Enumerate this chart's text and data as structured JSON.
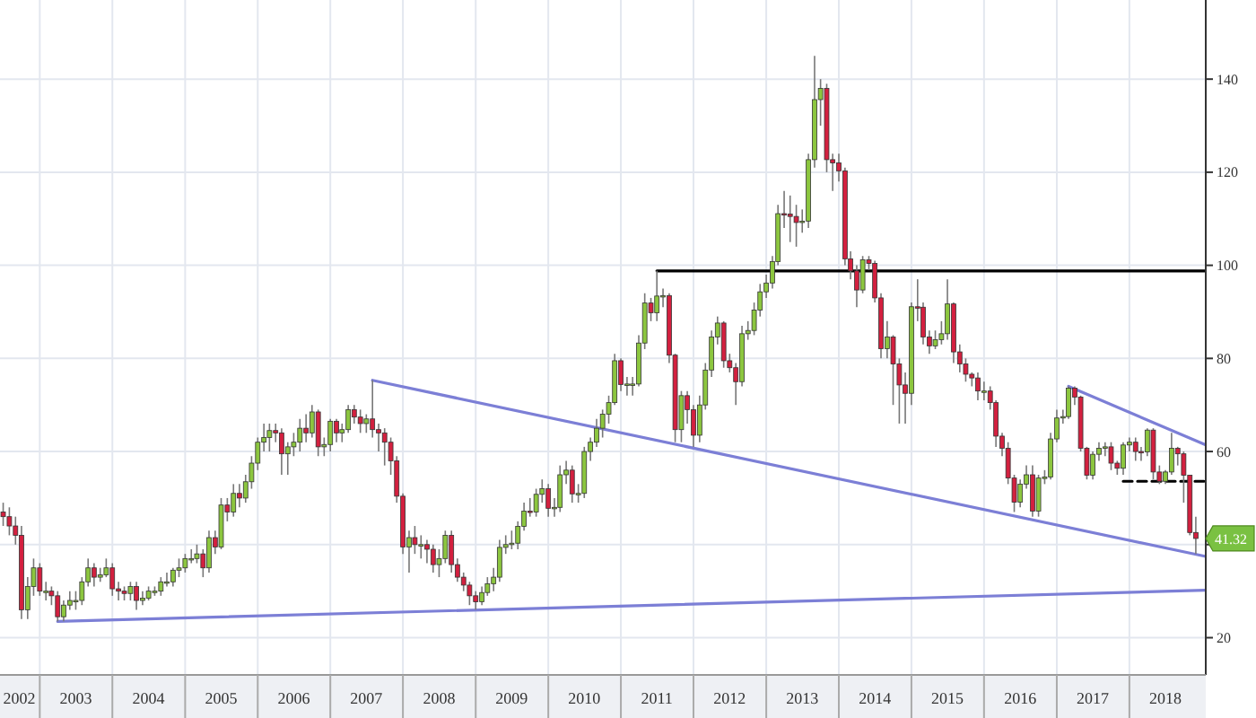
{
  "chart_data": {
    "type": "candlestick",
    "colors": [
      "#d3203f",
      "#d3203f",
      "#d3203f",
      "#d3203f",
      "#8cc63f",
      "#8cc63f",
      "#d3203f",
      "#8cc63f",
      "#d3203f",
      "#d3203f",
      "#8cc63f",
      "#8cc63f",
      "#8cc63f",
      "#8cc63f",
      "#8cc63f",
      "#d3203f",
      "#8cc63f",
      "#8cc63f",
      "#d3203f",
      "#d3203f",
      "#d3203f",
      "#8cc63f",
      "#d3203f",
      "#8cc63f",
      "#8cc63f",
      "#8cc63f",
      "#8cc63f",
      "#8cc63f",
      "#8cc63f",
      "#8cc63f",
      "#8cc63f",
      "#8cc63f",
      "#8cc63f",
      "#d3203f",
      "#8cc63f",
      "#d3203f",
      "#8cc63f",
      "#d3203f",
      "#8cc63f",
      "#d3203f",
      "#8cc63f",
      "#8cc63f",
      "#8cc63f",
      "#8cc63f",
      "#8cc63f",
      "#d3203f",
      "#d3203f",
      "#8cc63f",
      "#8cc63f",
      "#8cc63f",
      "#d3203f",
      "#8cc63f",
      "#d3203f",
      "#8cc63f",
      "#8cc63f",
      "#d3203f",
      "#8cc63f",
      "#8cc63f",
      "#d3203f",
      "#d3203f",
      "#8cc63f",
      "#d3203f",
      "#d3203f",
      "#d3203f",
      "#d3203f",
      "#d3203f",
      "#d3203f",
      "#8cc63f",
      "#d3203f",
      "#8cc63f",
      "#d3203f",
      "#d3203f",
      "#8cc63f",
      "#8cc63f",
      "#d3203f",
      "#d3203f",
      "#d3203f",
      "#d3203f",
      "#d3203f",
      "#8cc63f",
      "#8cc63f",
      "#8cc63f",
      "#8cc63f",
      "#8cc63f",
      "#8cc63f",
      "#8cc63f",
      "#8cc63f",
      "#d3203f",
      "#8cc63f",
      "#8cc63f",
      "#d3203f",
      "#8cc63f",
      "#8cc63f",
      "#8cc63f",
      "#d3203f",
      "#8cc63f",
      "#8cc63f",
      "#8cc63f",
      "#8cc63f",
      "#8cc63f",
      "#8cc63f",
      "#8cc63f",
      "#d3203f",
      "#8cc63f",
      "#8cc63f",
      "#8cc63f",
      "#8cc63f",
      "#d3203f",
      "#8cc63f",
      "#8cc63f",
      "#d3203f",
      "#d3203f",
      "#8cc63f",
      "#d3203f",
      "#d3203f",
      "#8cc63f",
      "#8cc63f",
      "#8cc63f",
      "#8cc63f",
      "#d3203f",
      "#d3203f",
      "#d3203f",
      "#8cc63f",
      "#8cc63f",
      "#8cc63f",
      "#8cc63f",
      "#8cc63f",
      "#8cc63f",
      "#8cc63f",
      "#d3203f",
      "#d3203f",
      "#d3203f",
      "#8cc63f",
      "#8cc63f",
      "#8cc63f",
      "#8cc63f",
      "#d3203f",
      "#d3203f",
      "#d3203f",
      "#d3203f",
      "#d3203f",
      "#d3203f",
      "#8cc63f",
      "#d3203f",
      "#d3203f",
      "#d3203f",
      "#8cc63f",
      "#d3203f",
      "#d3203f",
      "#d3203f",
      "#8cc63f",
      "#d3203f",
      "#d3203f",
      "#d3203f",
      "#8cc63f",
      "#8cc63f",
      "#8cc63f",
      "#d3203f",
      "#d3203f",
      "#d3203f",
      "#d3203f",
      "#d3203f",
      "#8cc63f",
      "#d3203f",
      "#d3203f",
      "#d3203f",
      "#d3203f",
      "#d3203f",
      "#8cc63f",
      "#8cc63f",
      "#d3203f",
      "#8cc63f",
      "#8cc63f",
      "#8cc63f",
      "#8cc63f",
      "#8cc63f",
      "#8cc63f",
      "#d3203f",
      "#d3203f",
      "#d3203f",
      "#8cc63f",
      "#8cc63f",
      "#8cc63f",
      "#d3203f",
      "#d3203f",
      "#8cc63f",
      "#8cc63f",
      "#d3203f",
      "#d3203f",
      "#8cc63f",
      "#d3203f",
      "#d3203f",
      "#8cc63f",
      "#8cc63f",
      "#d3203f",
      "#d3203f",
      "#d3203f",
      "#d3203f"
    ],
    "x": [
      "2002-07",
      "2002-08",
      "2002-09",
      "2002-10",
      "2002-11",
      "2002-12",
      "2003-01",
      "2003-02",
      "2003-03",
      "2003-04",
      "2003-05",
      "2003-06",
      "2003-07",
      "2003-08",
      "2003-09",
      "2003-10",
      "2003-11",
      "2003-12",
      "2004-01",
      "2004-02",
      "2004-03",
      "2004-04",
      "2004-05",
      "2004-06",
      "2004-07",
      "2004-08",
      "2004-09",
      "2004-10",
      "2004-11",
      "2004-12",
      "2005-01",
      "2005-02",
      "2005-03",
      "2005-04",
      "2005-05",
      "2005-06",
      "2005-07",
      "2005-08",
      "2005-09",
      "2005-10",
      "2005-11",
      "2005-12",
      "2006-01",
      "2006-02",
      "2006-03",
      "2006-04",
      "2006-05",
      "2006-06",
      "2006-07",
      "2006-08",
      "2006-09",
      "2006-10",
      "2006-11",
      "2006-12",
      "2007-01",
      "2007-02",
      "2007-03",
      "2007-04",
      "2007-05",
      "2007-06",
      "2007-07",
      "2007-08",
      "2007-09",
      "2007-10",
      "2007-11",
      "2007-12",
      "2008-01",
      "2008-02",
      "2008-03",
      "2008-04",
      "2008-05",
      "2008-06",
      "2008-07",
      "2008-08",
      "2008-09",
      "2008-10",
      "2008-11",
      "2008-12",
      "2009-01",
      "2009-02",
      "2009-03",
      "2009-04",
      "2009-05",
      "2009-06",
      "2009-07",
      "2009-08",
      "2009-09",
      "2009-10",
      "2009-11",
      "2009-12",
      "2010-01",
      "2010-02",
      "2010-03",
      "2010-04",
      "2010-05",
      "2010-06",
      "2010-07",
      "2010-08",
      "2010-09",
      "2010-10",
      "2010-11",
      "2010-12",
      "2011-01",
      "2011-02",
      "2011-03",
      "2011-04",
      "2011-05",
      "2011-06",
      "2011-07",
      "2011-08",
      "2011-09",
      "2011-10",
      "2011-11",
      "2011-12",
      "2012-01",
      "2012-02",
      "2012-03",
      "2012-04",
      "2012-05",
      "2012-06",
      "2012-07",
      "2012-08",
      "2012-09",
      "2012-10",
      "2012-11",
      "2012-12",
      "2013-01",
      "2013-02",
      "2013-03",
      "2013-04",
      "2013-05",
      "2013-06",
      "2013-07",
      "2013-08",
      "2013-09",
      "2013-10",
      "2013-11",
      "2013-12",
      "2014-01",
      "2014-02",
      "2014-03",
      "2014-04",
      "2014-05",
      "2014-06",
      "2014-07",
      "2014-08",
      "2014-09",
      "2014-10",
      "2014-11",
      "2014-12",
      "2015-01",
      "2015-02",
      "2015-03",
      "2015-04",
      "2015-05",
      "2015-06",
      "2015-07",
      "2015-08",
      "2015-09",
      "2015-10",
      "2015-11",
      "2015-12",
      "2016-01",
      "2016-02",
      "2016-03",
      "2016-04",
      "2016-05",
      "2016-06",
      "2016-07",
      "2016-08",
      "2016-09",
      "2016-10",
      "2016-11",
      "2016-12",
      "2017-01",
      "2017-02",
      "2017-03",
      "2017-04",
      "2017-05",
      "2017-06",
      "2017-07",
      "2017-08",
      "2017-09",
      "2017-10",
      "2017-11",
      "2017-12",
      "2018-01",
      "2018-02",
      "2018-03",
      "2018-04",
      "2018-05",
      "2018-06",
      "2018-07",
      "2018-08",
      "2018-09",
      "2018-10",
      "2018-11",
      "2018-12"
    ],
    "ohlc": [
      [
        47,
        49,
        44,
        46
      ],
      [
        46,
        48,
        42,
        44
      ],
      [
        44,
        46,
        40,
        42
      ],
      [
        42,
        44,
        24,
        26
      ],
      [
        26,
        33,
        24,
        31
      ],
      [
        31,
        37,
        29,
        35
      ],
      [
        35,
        36,
        29,
        30
      ],
      [
        30,
        32,
        28,
        30
      ],
      [
        30,
        31,
        27,
        29
      ],
      [
        29,
        30,
        23.5,
        24.5
      ],
      [
        24.5,
        28,
        23.5,
        27
      ],
      [
        27,
        30,
        26,
        28
      ],
      [
        28,
        30,
        26,
        28
      ],
      [
        28,
        33,
        27,
        32
      ],
      [
        32,
        37,
        31,
        35
      ],
      [
        35,
        36,
        31,
        33
      ],
      [
        33,
        35,
        32,
        33.5
      ],
      [
        33.5,
        37,
        33,
        35
      ],
      [
        35,
        36,
        29,
        30.5
      ],
      [
        30.5,
        32,
        28,
        30
      ],
      [
        30,
        31,
        28,
        29.5
      ],
      [
        29.5,
        32,
        28,
        31
      ],
      [
        31,
        32,
        26,
        28
      ],
      [
        28,
        30,
        27,
        28.5
      ],
      [
        28.5,
        31,
        28,
        30
      ],
      [
        30,
        31,
        29,
        30
      ],
      [
        30,
        33,
        29,
        32
      ],
      [
        32,
        34,
        31,
        32
      ],
      [
        32,
        35,
        31,
        34.5
      ],
      [
        34.5,
        37,
        33,
        35
      ],
      [
        35,
        38,
        34,
        37
      ],
      [
        37,
        39,
        36,
        37
      ],
      [
        37,
        40,
        36,
        38
      ],
      [
        38,
        39,
        33,
        35
      ],
      [
        35,
        43,
        34,
        41.5
      ],
      [
        41.5,
        43,
        38,
        39.5
      ],
      [
        39.5,
        50,
        39,
        48.5
      ],
      [
        48.5,
        50,
        45,
        47
      ],
      [
        47,
        53,
        46,
        51
      ],
      [
        51,
        53,
        48,
        50
      ],
      [
        50,
        55,
        49,
        53.5
      ],
      [
        53.5,
        59,
        52,
        57.5
      ],
      [
        57.5,
        63,
        56,
        62
      ],
      [
        62,
        66,
        60,
        63
      ],
      [
        63,
        66,
        60,
        64.5
      ],
      [
        64.5,
        66,
        62,
        64
      ],
      [
        64,
        65,
        55,
        59.5
      ],
      [
        59.5,
        62,
        55,
        61
      ],
      [
        61,
        64,
        59,
        62
      ],
      [
        62,
        67,
        60,
        65
      ],
      [
        65,
        68,
        62,
        64
      ],
      [
        64,
        70,
        63,
        68.5
      ],
      [
        68.5,
        69,
        59,
        61
      ],
      [
        61,
        63,
        59,
        61.5
      ],
      [
        61.5,
        67,
        60,
        66.5
      ],
      [
        66.5,
        67,
        62,
        64
      ],
      [
        64,
        66,
        62,
        64.7
      ],
      [
        64.7,
        70,
        64,
        69
      ],
      [
        69,
        70,
        66,
        67.4
      ],
      [
        67.4,
        69,
        64,
        66
      ],
      [
        66,
        68,
        64,
        67
      ],
      [
        67,
        75.3,
        63,
        64.7
      ],
      [
        64.7,
        66,
        60,
        64
      ],
      [
        64,
        65,
        57,
        62
      ],
      [
        62,
        63,
        55,
        58
      ],
      [
        58,
        59,
        49,
        50.4
      ],
      [
        50.4,
        51,
        38,
        39.5
      ],
      [
        39.5,
        43,
        34,
        41.5
      ],
      [
        41.5,
        44,
        38,
        40
      ],
      [
        40,
        42,
        37,
        40
      ],
      [
        40,
        41,
        36,
        39
      ],
      [
        39,
        40,
        34,
        35.7
      ],
      [
        35.7,
        39,
        33,
        37
      ],
      [
        37,
        43,
        36,
        42
      ],
      [
        42,
        43,
        34,
        35.7
      ],
      [
        35.7,
        37,
        32,
        33
      ],
      [
        33,
        34,
        30,
        31.3
      ],
      [
        31.3,
        32,
        27,
        29
      ],
      [
        29,
        30,
        26,
        27.7
      ],
      [
        27.7,
        31,
        27,
        29.7
      ],
      [
        29.7,
        33,
        29,
        31.6
      ],
      [
        31.6,
        35,
        30,
        33
      ],
      [
        33,
        41,
        32,
        39.4
      ],
      [
        39.4,
        42,
        38,
        40
      ],
      [
        40,
        43,
        39,
        40.3
      ],
      [
        40.3,
        45,
        39,
        43.9
      ],
      [
        43.9,
        49,
        43,
        47.2
      ],
      [
        47.2,
        50,
        46,
        47
      ],
      [
        47,
        52,
        46,
        50.8
      ],
      [
        50.8,
        54,
        49,
        52
      ],
      [
        52,
        53,
        46,
        47.8
      ],
      [
        47.8,
        50,
        46,
        48
      ],
      [
        48,
        57,
        47,
        55
      ],
      [
        55,
        58,
        53,
        56
      ],
      [
        56,
        57,
        49,
        50.9
      ],
      [
        50.9,
        53,
        49,
        51
      ],
      [
        51,
        61,
        50,
        60
      ],
      [
        60,
        63,
        58,
        62
      ],
      [
        62,
        67,
        61,
        65
      ],
      [
        65,
        69,
        63,
        68
      ],
      [
        68,
        72,
        66,
        70.5
      ],
      [
        70.5,
        81,
        70,
        79.5
      ],
      [
        79.5,
        80,
        73,
        74.4
      ],
      [
        74.4,
        76,
        72,
        74.5
      ],
      [
        74.5,
        76,
        72,
        74.5
      ],
      [
        74.5,
        85,
        74,
        83.3
      ],
      [
        83.3,
        94,
        82,
        91.9
      ],
      [
        91.9,
        93,
        88,
        89.8
      ],
      [
        89.8,
        98.8,
        88,
        93.4
      ],
      [
        93.4,
        95,
        91,
        93.5
      ],
      [
        93.5,
        94,
        79,
        80.7
      ],
      [
        80.7,
        81,
        62,
        64.7
      ],
      [
        64.7,
        73,
        62,
        72
      ],
      [
        72,
        73,
        66,
        69
      ],
      [
        69,
        70,
        61,
        63.5
      ],
      [
        63.5,
        72,
        62,
        70
      ],
      [
        70,
        79,
        69,
        77.5
      ],
      [
        77.5,
        86,
        76,
        84.6
      ],
      [
        84.6,
        89,
        83,
        87.6
      ],
      [
        87.6,
        88,
        78,
        79.5
      ],
      [
        79.5,
        81,
        77,
        78
      ],
      [
        78,
        79,
        70,
        75
      ],
      [
        75,
        87,
        74,
        85.3
      ],
      [
        85.3,
        88,
        84,
        86
      ],
      [
        86,
        92,
        85,
        90.4
      ],
      [
        90.4,
        96,
        89,
        94.3
      ],
      [
        94.3,
        98,
        93,
        96.2
      ],
      [
        96.2,
        102,
        95,
        100.8
      ],
      [
        100.8,
        113,
        100,
        111.1
      ],
      [
        111.1,
        116,
        108,
        111
      ],
      [
        111,
        115,
        105,
        110.5
      ],
      [
        110.5,
        113,
        104,
        109.2
      ],
      [
        109.2,
        112,
        107,
        109.5
      ],
      [
        109.5,
        124,
        108,
        122.7
      ],
      [
        122.7,
        145,
        121,
        135.6
      ],
      [
        135.6,
        140,
        130,
        138
      ],
      [
        138,
        139,
        120,
        122.7
      ],
      [
        122.7,
        124,
        116,
        122
      ],
      [
        122,
        124,
        118,
        120.3
      ],
      [
        120.3,
        121,
        100,
        101.4
      ],
      [
        101.4,
        103,
        97,
        98.8
      ],
      [
        98.8,
        100,
        91,
        94.7
      ],
      [
        94.7,
        102,
        94,
        101.2
      ],
      [
        101.2,
        102,
        99,
        100.4
      ],
      [
        100.4,
        101,
        92,
        93
      ],
      [
        93,
        94,
        80,
        82.1
      ],
      [
        82.1,
        88,
        80,
        84.6
      ],
      [
        84.6,
        85,
        70,
        78.8
      ],
      [
        78.8,
        80,
        66,
        74.3
      ],
      [
        74.3,
        77,
        66,
        72.5
      ],
      [
        72.5,
        92,
        70,
        91.1
      ],
      [
        91.1,
        97,
        88,
        91
      ],
      [
        91,
        92,
        83,
        84.6
      ],
      [
        84.6,
        86,
        81,
        82.7
      ],
      [
        82.7,
        86,
        82,
        84
      ],
      [
        84,
        88,
        83,
        85.3
      ],
      [
        85.3,
        97,
        84,
        91.7
      ],
      [
        91.7,
        92,
        79,
        81.4
      ],
      [
        81.4,
        83,
        77,
        78.8
      ],
      [
        78.8,
        80,
        75,
        76.6
      ],
      [
        76.6,
        77,
        74,
        75.8
      ],
      [
        75.8,
        77,
        71,
        73
      ],
      [
        73,
        75,
        71,
        73
      ],
      [
        73,
        74,
        69,
        70.5
      ],
      [
        70.5,
        71,
        61,
        63.3
      ],
      [
        63.3,
        64,
        59,
        60.7
      ],
      [
        60.7,
        62,
        53,
        54.3
      ],
      [
        54.3,
        55,
        47,
        49.1
      ],
      [
        49.1,
        54,
        48,
        53
      ],
      [
        53,
        57,
        52,
        55
      ],
      [
        55,
        57,
        46,
        47.2
      ],
      [
        47.2,
        55,
        46,
        54.3
      ],
      [
        54.3,
        56,
        53,
        54.5
      ],
      [
        54.5,
        64,
        54,
        62.7
      ],
      [
        62.7,
        69,
        62,
        67.2
      ],
      [
        67.2,
        69,
        66,
        67.5
      ],
      [
        67.5,
        74,
        67,
        73.6
      ],
      [
        73.6,
        74,
        70,
        71.7
      ],
      [
        71.7,
        72,
        60,
        60.7
      ],
      [
        60.7,
        61,
        54,
        54.9
      ],
      [
        54.9,
        60,
        54,
        59.4
      ],
      [
        59.4,
        62,
        58,
        60.7
      ],
      [
        60.7,
        62,
        59,
        61
      ],
      [
        61,
        62,
        56,
        57.5
      ],
      [
        57.5,
        58,
        55,
        56.4
      ],
      [
        56.4,
        62,
        55,
        61.4
      ],
      [
        61.4,
        63,
        60,
        62
      ],
      [
        62,
        63,
        58,
        60
      ],
      [
        60,
        61,
        58,
        59.9
      ],
      [
        59.9,
        65,
        59,
        64.6
      ],
      [
        64.6,
        65,
        54,
        55.6
      ],
      [
        55.6,
        57,
        53,
        53.6
      ],
      [
        53.6,
        56,
        53,
        55.6
      ],
      [
        55.6,
        64,
        55,
        60.7
      ],
      [
        60.7,
        61,
        57,
        59.5
      ],
      [
        59.5,
        60,
        49,
        54.9
      ],
      [
        54.9,
        55,
        42,
        42.6
      ],
      [
        42.6,
        46,
        38,
        41.32
      ]
    ],
    "series": [
      {
        "type": "line",
        "color": "#7c7fd6",
        "line_style": "solid",
        "x": [
          "2003-04",
          "2019-01-15"
        ],
        "values": [
          23.5,
          30.2
        ]
      },
      {
        "type": "line",
        "color": "#7c7fd6",
        "line_style": "solid",
        "x": [
          "2007-08",
          "2019-01-15"
        ],
        "values": [
          75.3,
          37.5
        ]
      },
      {
        "type": "line",
        "color": "#7c7fd6",
        "line_style": "solid",
        "x": [
          "2017-03",
          "2019-01-15"
        ],
        "values": [
          74,
          61.5
        ]
      },
      {
        "type": "line",
        "color": "#000000",
        "line_style": "solid",
        "x": [
          "2011-07",
          "2019-01-15"
        ],
        "values": [
          98.8,
          98.8
        ]
      },
      {
        "type": "line",
        "color": "#000000",
        "line_style": "dashed",
        "x": [
          "2017-12",
          "2019-01-15"
        ],
        "values": [
          53.6,
          53.6
        ]
      }
    ],
    "annotations": [
      "41.32"
    ],
    "xlim": [
      "2002-06-15",
      "2019-01-20"
    ],
    "xticks": [
      {
        "value": "2002-09-20",
        "label": "2002"
      },
      {
        "value": "2003-01-01",
        "label": null
      },
      {
        "value": "2003-07-01",
        "label": "2003"
      },
      {
        "value": "2004-01-01",
        "label": null
      },
      {
        "value": "2004-07-01",
        "label": "2004"
      },
      {
        "value": "2005-01-01",
        "label": null
      },
      {
        "value": "2005-07-01",
        "label": "2005"
      },
      {
        "value": "2006-01-01",
        "label": null
      },
      {
        "value": "2006-07-01",
        "label": "2006"
      },
      {
        "value": "2007-01-01",
        "label": null
      },
      {
        "value": "2007-07-01",
        "label": "2007"
      },
      {
        "value": "2008-01-01",
        "label": null
      },
      {
        "value": "2008-07-01",
        "label": "2008"
      },
      {
        "value": "2009-01-01",
        "label": null
      },
      {
        "value": "2009-07-01",
        "label": "2009"
      },
      {
        "value": "2010-01-01",
        "label": null
      },
      {
        "value": "2010-07-01",
        "label": "2010"
      },
      {
        "value": "2011-01-01",
        "label": null
      },
      {
        "value": "2011-07-01",
        "label": "2011"
      },
      {
        "value": "2012-01-01",
        "label": null
      },
      {
        "value": "2012-07-01",
        "label": "2012"
      },
      {
        "value": "2013-01-01",
        "label": null
      },
      {
        "value": "2013-07-01",
        "label": "2013"
      },
      {
        "value": "2014-01-01",
        "label": null
      },
      {
        "value": "2014-07-01",
        "label": "2014"
      },
      {
        "value": "2015-01-01",
        "label": null
      },
      {
        "value": "2015-07-01",
        "label": "2015"
      },
      {
        "value": "2016-01-01",
        "label": null
      },
      {
        "value": "2016-07-01",
        "label": "2016"
      },
      {
        "value": "2017-01-01",
        "label": null
      },
      {
        "value": "2017-07-01",
        "label": "2017"
      },
      {
        "value": "2018-01-01",
        "label": null
      },
      {
        "value": "2018-07-01",
        "label": "2018"
      }
    ],
    "ylim": [
      12,
      157
    ],
    "yticks": [
      20,
      {
        "value": 40,
        "label": null
      },
      60,
      80,
      100,
      120,
      140
    ],
    "grid": true
  }
}
